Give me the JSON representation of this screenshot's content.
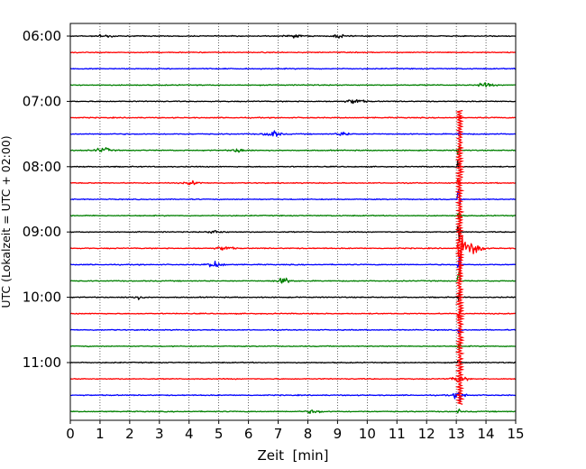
{
  "chart_data": {
    "type": "line",
    "title": "",
    "xlabel": "Zeit  [min]",
    "ylabel": "UTC (Lokalzeit = UTC + 02:00)",
    "xlim": [
      0,
      15
    ],
    "xticks": [
      0,
      1,
      2,
      3,
      4,
      5,
      6,
      7,
      8,
      9,
      10,
      11,
      12,
      13,
      14,
      15
    ],
    "xtick_labels": [
      "0",
      "1",
      "2",
      "3",
      "4",
      "5",
      "6",
      "7",
      "8",
      "9",
      "10",
      "11",
      "12",
      "13",
      "14",
      "15"
    ],
    "ytick_labels": [
      "06:00",
      "07:00",
      "08:00",
      "09:00",
      "10:00",
      "11:00"
    ],
    "row_minutes": 15,
    "grid": "vertical dotted",
    "legend": "none",
    "colors": [
      "#000000",
      "#ff0000",
      "#0000ff",
      "#008000"
    ],
    "rows": [
      {
        "start": "06:00",
        "color": "#000000"
      },
      {
        "start": "06:15",
        "color": "#ff0000"
      },
      {
        "start": "06:30",
        "color": "#0000ff"
      },
      {
        "start": "06:45",
        "color": "#008000"
      },
      {
        "start": "07:00",
        "color": "#000000"
      },
      {
        "start": "07:15",
        "color": "#ff0000"
      },
      {
        "start": "07:30",
        "color": "#0000ff"
      },
      {
        "start": "07:45",
        "color": "#008000"
      },
      {
        "start": "08:00",
        "color": "#000000"
      },
      {
        "start": "08:15",
        "color": "#ff0000"
      },
      {
        "start": "08:30",
        "color": "#0000ff"
      },
      {
        "start": "08:45",
        "color": "#008000"
      },
      {
        "start": "09:00",
        "color": "#000000"
      },
      {
        "start": "09:15",
        "color": "#ff0000"
      },
      {
        "start": "09:30",
        "color": "#0000ff"
      },
      {
        "start": "09:45",
        "color": "#008000"
      },
      {
        "start": "10:00",
        "color": "#000000"
      },
      {
        "start": "10:15",
        "color": "#ff0000"
      },
      {
        "start": "10:30",
        "color": "#0000ff"
      },
      {
        "start": "10:45",
        "color": "#008000"
      },
      {
        "start": "11:00",
        "color": "#000000"
      },
      {
        "start": "11:15",
        "color": "#ff0000"
      },
      {
        "start": "11:30",
        "color": "#0000ff"
      },
      {
        "start": "11:45",
        "color": "#008000"
      }
    ],
    "events": [
      {
        "row": 0,
        "minute": 1.2,
        "amplitude": 0.2
      },
      {
        "row": 0,
        "minute": 7.5,
        "amplitude": 0.2
      },
      {
        "row": 0,
        "minute": 9.1,
        "amplitude": 0.2
      },
      {
        "row": 3,
        "minute": 14.0,
        "amplitude": 0.25
      },
      {
        "row": 4,
        "minute": 9.6,
        "amplitude": 0.35
      },
      {
        "row": 6,
        "minute": 6.8,
        "amplitude": 0.4
      },
      {
        "row": 6,
        "minute": 9.2,
        "amplitude": 0.2
      },
      {
        "row": 7,
        "minute": 1.1,
        "amplitude": 0.3
      },
      {
        "row": 7,
        "minute": 5.7,
        "amplitude": 0.25
      },
      {
        "row": 9,
        "minute": 4.1,
        "amplitude": 0.2
      },
      {
        "row": 12,
        "minute": 4.9,
        "amplitude": 0.2
      },
      {
        "row": 13,
        "minute": 5.2,
        "amplitude": 0.3
      },
      {
        "row": 14,
        "minute": 4.9,
        "amplitude": 0.4
      },
      {
        "row": 15,
        "minute": 7.2,
        "amplitude": 0.35
      },
      {
        "row": 16,
        "minute": 2.2,
        "amplitude": 0.2
      },
      {
        "row": 21,
        "minute": 13.1,
        "amplitude": 0.35
      },
      {
        "row": 22,
        "minute": 13.1,
        "amplitude": 0.35
      },
      {
        "row": 23,
        "minute": 8.2,
        "amplitude": 0.2
      }
    ],
    "major_event": {
      "start_row": 5,
      "start_minute": 13.1,
      "peak_row": 13,
      "peak_minute": 13.25,
      "peak_amplitude": 5.5
    }
  }
}
